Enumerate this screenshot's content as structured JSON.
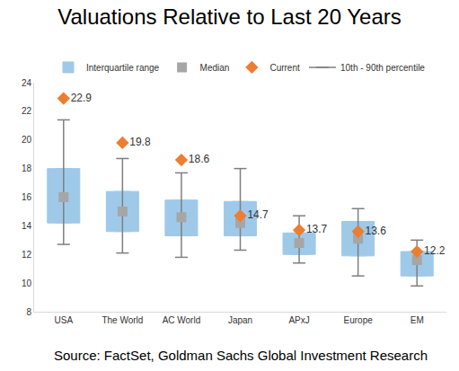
{
  "chart_data": {
    "type": "box",
    "title": "Valuations Relative to Last 20 Years",
    "annotations": [
      "Source: FactSet, Goldman Sachs Global Investment Research"
    ],
    "categories": [
      "USA",
      "The World",
      "AC World",
      "Japan",
      "APxJ",
      "Europe",
      "EM"
    ],
    "series": [
      {
        "name": "Interquartile range",
        "type": "box",
        "color": "#9fc9e9",
        "q1": [
          14.2,
          13.6,
          13.3,
          13.3,
          12.0,
          11.9,
          10.5
        ],
        "q3": [
          18.0,
          16.4,
          15.8,
          15.7,
          13.5,
          14.3,
          12.2
        ]
      },
      {
        "name": "Median",
        "type": "scatter",
        "marker": "square",
        "color": "#a6a6a6",
        "values": [
          16.0,
          15.0,
          14.6,
          14.2,
          12.8,
          13.1,
          11.6
        ]
      },
      {
        "name": "Current",
        "type": "scatter",
        "marker": "diamond",
        "color": "#ed7d31",
        "values": [
          22.9,
          19.8,
          18.6,
          14.7,
          13.7,
          13.6,
          12.2
        ],
        "data_labels": true
      },
      {
        "name": "10th - 90th percentile",
        "type": "errorbar",
        "color": "#7f7f7f",
        "low": [
          12.7,
          12.1,
          11.8,
          12.3,
          11.4,
          10.5,
          9.8
        ],
        "high": [
          21.4,
          18.7,
          17.7,
          18.0,
          14.7,
          15.2,
          13.0
        ]
      }
    ],
    "ylim": [
      8,
      24
    ],
    "yticks": [
      8,
      10,
      12,
      14,
      16,
      18,
      20,
      22,
      24
    ],
    "grid": false,
    "legend": "top"
  }
}
